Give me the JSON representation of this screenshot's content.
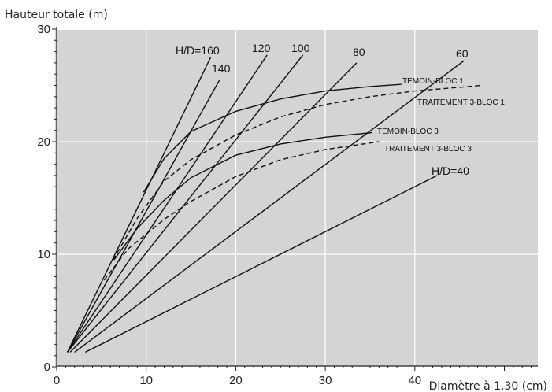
{
  "chart_data": {
    "type": "line",
    "ylabel": "Hauteur totale (m)",
    "xlabel": "Diamètre à 1,30 (cm)",
    "xlim": [
      0,
      53
    ],
    "ylim": [
      0,
      30
    ],
    "xticks": [
      "0",
      "10",
      "20",
      "30",
      "40"
    ],
    "yticks": [
      "0",
      "10",
      "20",
      "30"
    ],
    "grid": true,
    "background": "#d4d4d4",
    "grid_color": "#ffffff",
    "line_color": "#111111",
    "reference_lines": [
      {
        "label": "H/D=160",
        "ratio": 160,
        "x": [
          1.2,
          17.2
        ],
        "y": [
          1.3,
          27.5
        ]
      },
      {
        "label": "140",
        "ratio": 140,
        "x": [
          1.2,
          18.2
        ],
        "y": [
          1.3,
          25.5
        ]
      },
      {
        "label": "120",
        "ratio": 120,
        "x": [
          1.2,
          23.5
        ],
        "y": [
          1.3,
          27.7
        ]
      },
      {
        "label": "100",
        "ratio": 100,
        "x": [
          1.2,
          27.5
        ],
        "y": [
          1.3,
          27.7
        ]
      },
      {
        "label": "80",
        "ratio": 80,
        "x": [
          1.5,
          33.5
        ],
        "y": [
          1.3,
          27.0
        ]
      },
      {
        "label": "60",
        "ratio": 60,
        "x": [
          2.0,
          45.5
        ],
        "y": [
          1.3,
          27.2
        ]
      },
      {
        "label": "H/D=40",
        "ratio": 40,
        "x": [
          3.2,
          42.5
        ],
        "y": [
          1.3,
          17.0
        ]
      }
    ],
    "series": [
      {
        "name": "TEMOIN-BLOC 1",
        "style": "solid",
        "x": [
          9.7,
          12,
          15,
          20,
          25,
          30,
          35,
          38.5
        ],
        "y": [
          15.5,
          18.5,
          20.9,
          22.7,
          23.8,
          24.5,
          24.9,
          25.1
        ]
      },
      {
        "name": "TRAITEMENT 3-BLOC 1",
        "style": "dashed",
        "x": [
          6.3,
          9,
          12,
          15,
          20,
          25,
          30,
          35,
          40,
          47.5
        ],
        "y": [
          9.5,
          13.2,
          16.5,
          18.4,
          20.6,
          22.2,
          23.3,
          24.0,
          24.5,
          25.0
        ]
      },
      {
        "name": "TEMOIN-BLOC 3",
        "style": "solid",
        "x": [
          6.4,
          9,
          12,
          15,
          20,
          25,
          30,
          35.2
        ],
        "y": [
          9.5,
          12.3,
          14.8,
          16.8,
          18.8,
          19.8,
          20.4,
          20.8
        ]
      },
      {
        "name": "TRAITEMENT 3-BLOC 3",
        "style": "dashed",
        "x": [
          5.3,
          8,
          12,
          15,
          20,
          25,
          30,
          36
        ],
        "y": [
          7.7,
          10.5,
          13.1,
          14.7,
          16.9,
          18.4,
          19.3,
          20.0
        ]
      }
    ]
  }
}
